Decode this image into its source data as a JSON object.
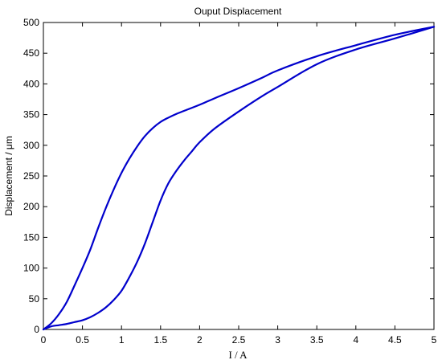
{
  "chart_data": {
    "type": "line",
    "title": "Ouput Displacement",
    "xlabel": "I / A",
    "ylabel": "Displacement / μm",
    "xlim": [
      0,
      5
    ],
    "ylim": [
      0,
      500
    ],
    "xticks": [
      "0",
      "0.5",
      "1",
      "1.5",
      "2",
      "2.5",
      "3",
      "3.5",
      "4",
      "4.5",
      "5"
    ],
    "yticks": [
      "0",
      "50",
      "100",
      "150",
      "200",
      "250",
      "300",
      "350",
      "400",
      "450",
      "500"
    ],
    "grid": false,
    "series": [
      {
        "color": "#0000cc",
        "x": [
          0,
          0.1,
          0.2,
          0.3,
          0.4,
          0.5,
          0.6,
          0.7,
          0.8,
          0.9,
          1.0,
          1.1,
          1.2,
          1.3,
          1.4,
          1.5,
          1.6,
          1.7,
          1.8,
          2.0,
          2.2,
          2.5,
          2.8,
          3.0,
          3.5,
          4.0,
          4.5,
          5.0
        ],
        "y": [
          0,
          10,
          25,
          45,
          72,
          100,
          130,
          165,
          198,
          228,
          255,
          278,
          298,
          315,
          328,
          338,
          345,
          351,
          356,
          366,
          377,
          393,
          410,
          422,
          445,
          463,
          480,
          493
        ]
      },
      {
        "color": "#0000cc",
        "x": [
          5.0,
          4.5,
          4.0,
          3.5,
          3.0,
          2.8,
          2.5,
          2.2,
          2.0,
          1.9,
          1.8,
          1.7,
          1.6,
          1.5,
          1.4,
          1.3,
          1.2,
          1.1,
          1.0,
          0.9,
          0.8,
          0.7,
          0.6,
          0.5,
          0.4,
          0.3,
          0.2,
          0.1,
          0
        ],
        "y": [
          493,
          474,
          456,
          432,
          395,
          380,
          355,
          328,
          305,
          290,
          275,
          258,
          238,
          210,
          175,
          140,
          110,
          85,
          63,
          48,
          36,
          27,
          20,
          15,
          12,
          9,
          7,
          5,
          0
        ]
      }
    ]
  }
}
